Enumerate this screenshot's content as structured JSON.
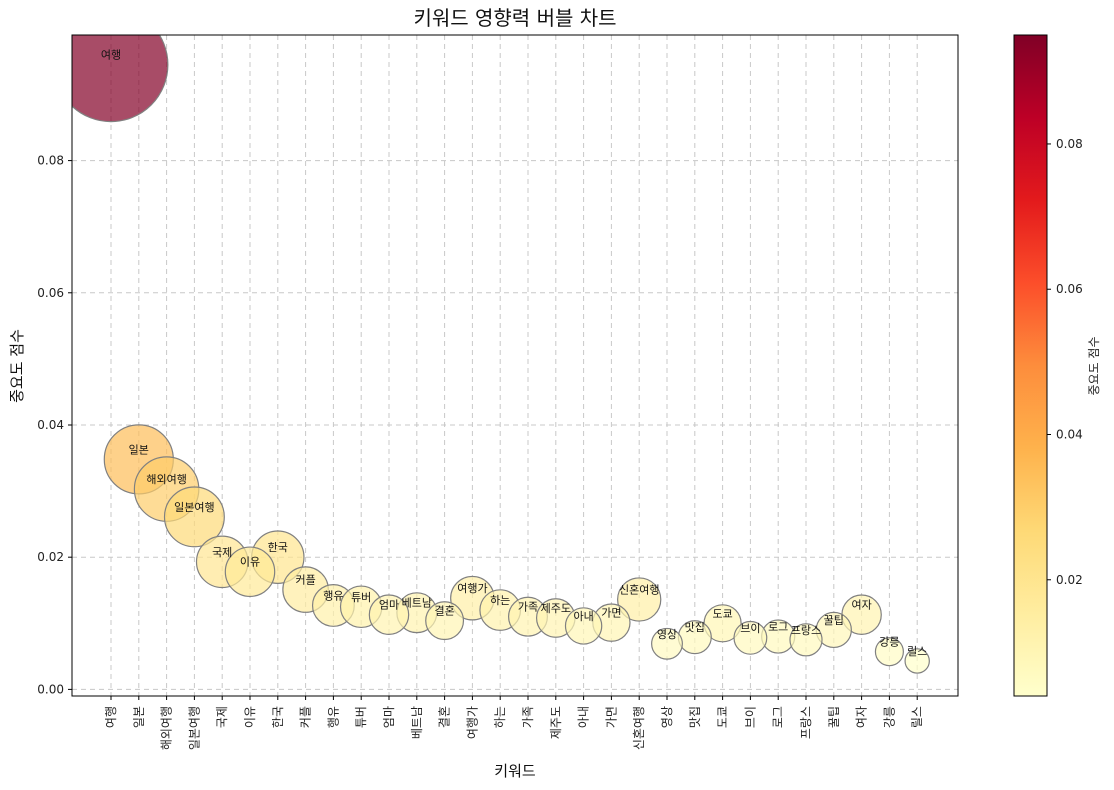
{
  "chart_data": {
    "type": "scatter",
    "title": "키워드 영향력 버블 차트",
    "xlabel": "키워드",
    "ylabel": "중요도 점수",
    "colorbar_label": "중요도 점수",
    "ylim": [
      -0.001,
      0.099
    ],
    "yticks": [
      "0.00",
      "0.02",
      "0.04",
      "0.06",
      "0.08"
    ],
    "colorbar_range": [
      0.004,
      0.095
    ],
    "colorbar_ticks": [
      "0.02",
      "0.04",
      "0.06",
      "0.08"
    ],
    "colormap": "YlOrRd",
    "grid": true,
    "categories": [
      "여행",
      "일본",
      "해외여행",
      "일본여행",
      "국제",
      "이유",
      "한국",
      "커플",
      "행유",
      "튜버",
      "엄마",
      "베트남",
      "결혼",
      "여행가",
      "하는",
      "가족",
      "제주도",
      "아내",
      "가면",
      "신혼여행",
      "영상",
      "맛집",
      "도쿄",
      "브이",
      "로그",
      "프랑스",
      "꿀팁",
      "여자",
      "강릉",
      "릴스"
    ],
    "values": [
      0.0945,
      0.0348,
      0.0303,
      0.0261,
      0.0193,
      0.0178,
      0.02,
      0.0151,
      0.0127,
      0.0125,
      0.0113,
      0.0116,
      0.0104,
      0.0138,
      0.012,
      0.011,
      0.0108,
      0.0096,
      0.0101,
      0.0136,
      0.0069,
      0.0079,
      0.01,
      0.0078,
      0.008,
      0.0075,
      0.009,
      0.0113,
      0.0057,
      0.0043
    ]
  }
}
